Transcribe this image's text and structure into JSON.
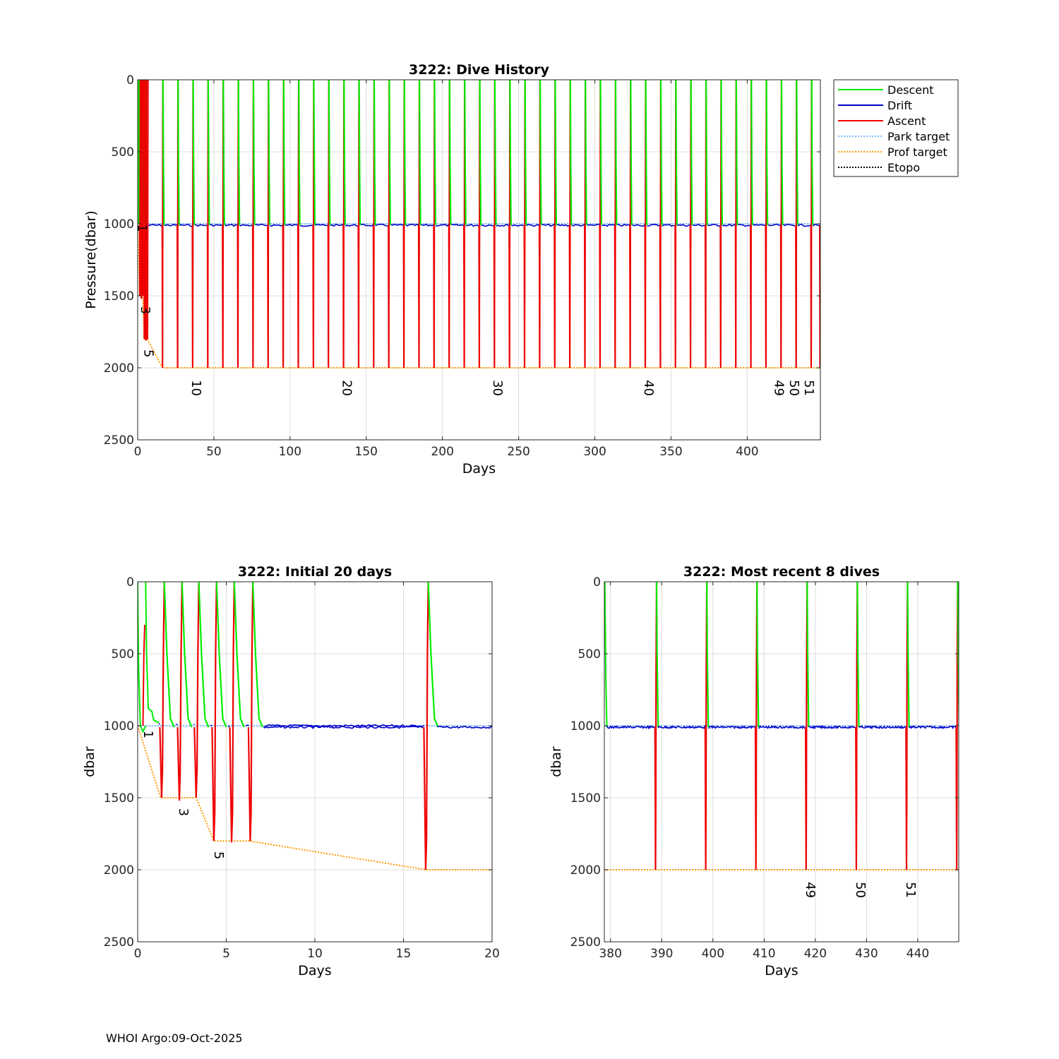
{
  "footer": "WHOI Argo:09-Oct-2025",
  "colors": {
    "descent": "#00ee00",
    "drift": "#0000cc",
    "ascent": "#ee0000",
    "park_target": "#4da6ff",
    "prof_target": "#ff9900",
    "etopo": "#000000",
    "grid": "#dcdcdc"
  },
  "legend": [
    "Descent",
    "Drift",
    "Ascent",
    "Park target",
    "Prof target",
    "Etopo"
  ],
  "chart_data": [
    {
      "id": "history",
      "type": "line",
      "title": "3222: Dive History",
      "xlabel": "Days",
      "ylabel": "Pressure(dbar)",
      "xlim": [
        0,
        448
      ],
      "ylim": [
        0,
        2500
      ],
      "y_reversed": true,
      "xticks": [
        0,
        50,
        100,
        150,
        200,
        250,
        300,
        350,
        400
      ],
      "yticks": [
        0,
        500,
        1000,
        1500,
        2000,
        2500
      ],
      "drift_level": 1010,
      "profile_depth": 2000,
      "early_profiles": [
        {
          "day": 1.35,
          "depth": 1500
        },
        {
          "day": 2.35,
          "depth": 1520
        },
        {
          "day": 3.3,
          "depth": 1500
        },
        {
          "day": 4.3,
          "depth": 1800
        },
        {
          "day": 5.3,
          "depth": 1810
        },
        {
          "day": 6.35,
          "depth": 1800
        }
      ],
      "profile_days": [
        16.3,
        26.2,
        36.1,
        46.0,
        55.9,
        65.8,
        75.7,
        85.6,
        95.5,
        105.4,
        115.3,
        125.2,
        135.1,
        145.0,
        154.9,
        164.8,
        174.7,
        184.6,
        194.5,
        204.4,
        214.3,
        224.2,
        234.1,
        244.0,
        253.9,
        263.8,
        273.7,
        283.6,
        293.5,
        303.4,
        313.3,
        323.2,
        333.1,
        343.0,
        352.9,
        362.8,
        372.7,
        382.6,
        392.5,
        402.4,
        412.3,
        422.2,
        432.1,
        442.0,
        448.0
      ],
      "prof_target": [
        [
          0,
          1000
        ],
        [
          1.3,
          1500
        ],
        [
          3.3,
          1500
        ],
        [
          4.3,
          1800
        ],
        [
          6.3,
          1800
        ],
        [
          16.3,
          2000
        ],
        [
          448,
          2000
        ]
      ],
      "park_target": [
        [
          0,
          1000
        ],
        [
          448,
          1000
        ]
      ],
      "cycle_labels": [
        {
          "text": "1",
          "x": 0.3,
          "y": 1030
        },
        {
          "text": "3",
          "x": 2.4,
          "y": 1600
        },
        {
          "text": "5",
          "x": 4.4,
          "y": 1900
        },
        {
          "text": "10",
          "x": 35.6,
          "y": 2140
        },
        {
          "text": "20",
          "x": 134.6,
          "y": 2140
        },
        {
          "text": "30",
          "x": 233.6,
          "y": 2140
        },
        {
          "text": "40",
          "x": 332.6,
          "y": 2140
        },
        {
          "text": "49",
          "x": 418.0,
          "y": 2140
        },
        {
          "text": "50",
          "x": 428.0,
          "y": 2140
        },
        {
          "text": "51",
          "x": 437.8,
          "y": 2140
        }
      ]
    },
    {
      "id": "initial",
      "type": "line",
      "title": "3222: Initial 20 days",
      "xlabel": "Days",
      "ylabel": "dbar",
      "xlim": [
        0,
        20
      ],
      "ylim": [
        0,
        2500
      ],
      "y_reversed": true,
      "xticks": [
        0,
        5,
        10,
        15,
        20
      ],
      "yticks": [
        0,
        500,
        1000,
        1500,
        2000,
        2500
      ],
      "drift_level": 1010,
      "early_profiles": [
        {
          "day": 1.35,
          "depth": 1500
        },
        {
          "day": 2.35,
          "depth": 1520
        },
        {
          "day": 3.3,
          "depth": 1500
        },
        {
          "day": 4.3,
          "depth": 1800
        },
        {
          "day": 5.3,
          "depth": 1810
        },
        {
          "day": 6.35,
          "depth": 1800
        },
        {
          "day": 16.25,
          "depth": 2000
        }
      ],
      "prof_target": [
        [
          0,
          1000
        ],
        [
          1.3,
          1500
        ],
        [
          3.3,
          1500
        ],
        [
          4.3,
          1800
        ],
        [
          6.3,
          1800
        ],
        [
          16.3,
          2000
        ],
        [
          20,
          2000
        ]
      ],
      "park_target": [
        [
          0,
          1000
        ],
        [
          20,
          1000
        ]
      ],
      "cycle_labels": [
        {
          "text": "1",
          "x": 0.35,
          "y": 1060
        },
        {
          "text": "3",
          "x": 2.35,
          "y": 1600
        },
        {
          "text": "5",
          "x": 4.35,
          "y": 1900
        }
      ]
    },
    {
      "id": "recent",
      "type": "line",
      "title": "3222: Most recent 8 dives",
      "xlabel": "Days",
      "ylabel": "dbar",
      "xlim": [
        378.8,
        448
      ],
      "ylim": [
        0,
        2500
      ],
      "y_reversed": true,
      "xticks": [
        380,
        390,
        400,
        410,
        420,
        430,
        440
      ],
      "yticks": [
        0,
        500,
        1000,
        1500,
        2000,
        2500
      ],
      "drift_level": 1010,
      "profile_days": [
        388.8,
        398.6,
        408.4,
        418.2,
        428.0,
        437.8,
        447.6
      ],
      "prof_target": [
        [
          378.8,
          2000
        ],
        [
          448,
          2000
        ]
      ],
      "park_target": [
        [
          378.8,
          1000
        ],
        [
          448,
          1000
        ]
      ],
      "cycle_labels": [
        {
          "text": "49",
          "x": 418.2,
          "y": 2140
        },
        {
          "text": "50",
          "x": 428.0,
          "y": 2140
        },
        {
          "text": "51",
          "x": 437.8,
          "y": 2140
        }
      ]
    }
  ]
}
